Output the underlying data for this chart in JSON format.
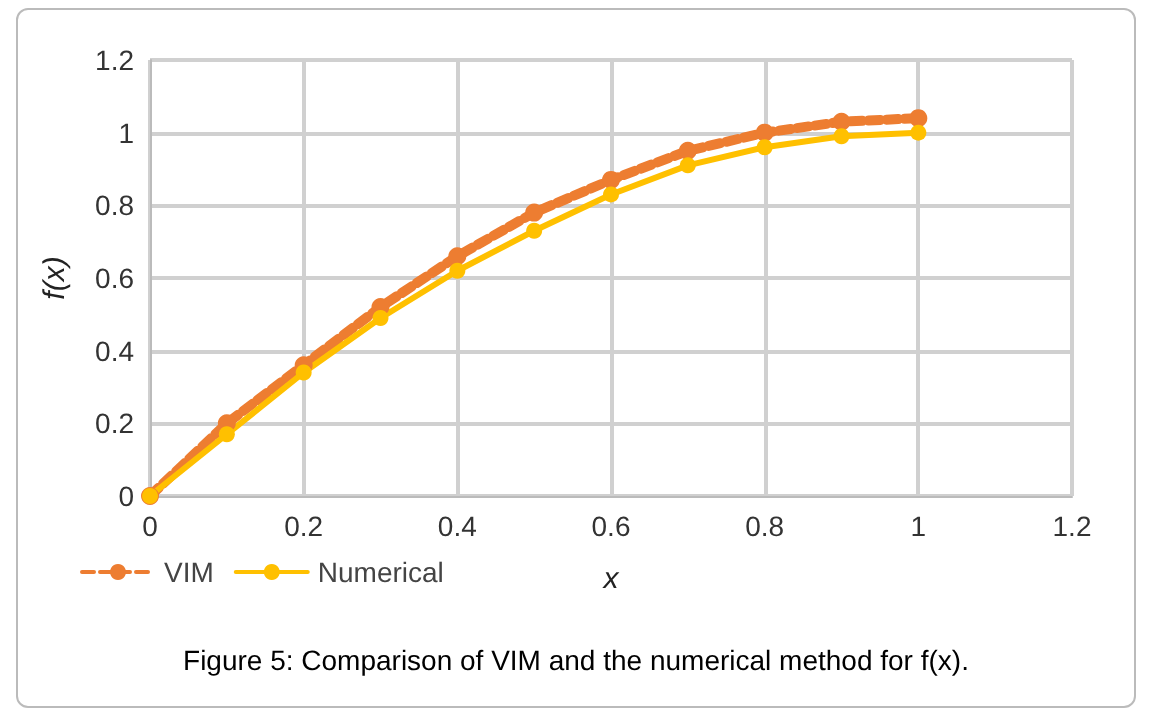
{
  "chart_data": {
    "type": "line",
    "xlabel": "x",
    "ylabel": "f(x)",
    "annotations": [
      "Figure 5: Comparison of VIM and the numerical method for f(x)."
    ],
    "x": [
      0,
      0.1,
      0.2,
      0.3,
      0.4,
      0.5,
      0.6,
      0.7,
      0.8,
      0.9,
      1
    ],
    "series": [
      {
        "name": "VIM",
        "color": "#ed7d31",
        "line_style": "dashed",
        "values": [
          0,
          0.2,
          0.36,
          0.52,
          0.66,
          0.78,
          0.87,
          0.95,
          1,
          1.03,
          1.04
        ]
      },
      {
        "name": "Numerical",
        "color": "#ffc000",
        "line_style": "solid",
        "values": [
          0,
          0.17,
          0.34,
          0.49,
          0.62,
          0.73,
          0.83,
          0.91,
          0.96,
          0.99,
          1
        ]
      }
    ],
    "xlim": [
      0,
      1.2
    ],
    "xticks": [
      0,
      0.2,
      0.4,
      0.6,
      0.8,
      1,
      1.2
    ],
    "ylim": [
      0,
      1.2
    ],
    "yticks": [
      0,
      0.2,
      0.4,
      0.6,
      0.8,
      1,
      1.2
    ],
    "grid": true,
    "legend": "bottom left",
    "marker": "circle"
  }
}
